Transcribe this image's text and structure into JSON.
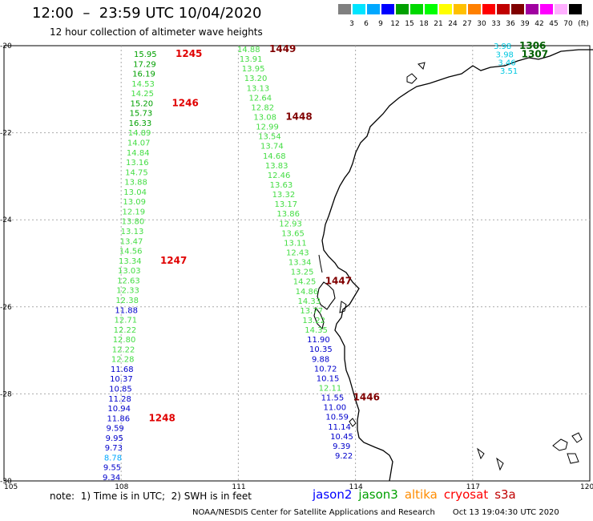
{
  "header": {
    "title": "12:00  –  23:59 UTC 10/04/2020",
    "subtitle": "12 hour collection of altimeter wave heights"
  },
  "scale": {
    "unit": "(ft)",
    "bins": [
      {
        "label": "3",
        "color": "#808080"
      },
      {
        "label": "6",
        "color": "#00e5ff"
      },
      {
        "label": "9",
        "color": "#00a8ff"
      },
      {
        "label": "12",
        "color": "#0000ff"
      },
      {
        "label": "15",
        "color": "#00a000"
      },
      {
        "label": "18",
        "color": "#00d800"
      },
      {
        "label": "21",
        "color": "#00ff00"
      },
      {
        "label": "24",
        "color": "#ffff00"
      },
      {
        "label": "27",
        "color": "#ffc000"
      },
      {
        "label": "30",
        "color": "#ff8000"
      },
      {
        "label": "33",
        "color": "#ff0000"
      },
      {
        "label": "36",
        "color": "#c00000"
      },
      {
        "label": "39",
        "color": "#800000"
      },
      {
        "label": "42",
        "color": "#a000a0"
      },
      {
        "label": "45",
        "color": "#ff00ff"
      },
      {
        "label": "70",
        "color": "#ffb0ff"
      },
      {
        "label": "",
        "color": "#000000"
      }
    ]
  },
  "map": {
    "lat_labels": [
      "-20",
      "-22",
      "-24",
      "-26",
      "-28",
      "-30"
    ],
    "lon_labels": [
      "105",
      "108",
      "111",
      "114",
      "117",
      "120"
    ],
    "tracks": [
      {
        "id": "1245-1248",
        "labels": [
          {
            "text": "1245",
            "color": "#e00000"
          },
          {
            "text": "1246",
            "color": "#e00000"
          },
          {
            "text": "1247",
            "color": "#e00000"
          },
          {
            "text": "1248",
            "color": "#e00000"
          }
        ],
        "values": [
          {
            "v": "15.95",
            "c": "#00a000"
          },
          {
            "v": "17.29",
            "c": "#00a000"
          },
          {
            "v": "16.19",
            "c": "#00a000"
          },
          {
            "v": "14.53",
            "c": "#44dd44"
          },
          {
            "v": "14.25",
            "c": "#44dd44"
          },
          {
            "v": "15.20",
            "c": "#00a000"
          },
          {
            "v": "15.73",
            "c": "#00a000"
          },
          {
            "v": "16.33",
            "c": "#00a000"
          },
          {
            "v": "14.89",
            "c": "#44dd44"
          },
          {
            "v": "14.07",
            "c": "#44dd44"
          },
          {
            "v": "14.84",
            "c": "#44dd44"
          },
          {
            "v": "13.16",
            "c": "#44dd44"
          },
          {
            "v": "14.75",
            "c": "#44dd44"
          },
          {
            "v": "13.88",
            "c": "#44dd44"
          },
          {
            "v": "13.04",
            "c": "#44dd44"
          },
          {
            "v": "13.09",
            "c": "#44dd44"
          },
          {
            "v": "12.19",
            "c": "#44dd44"
          },
          {
            "v": "13.80",
            "c": "#44dd44"
          },
          {
            "v": "13.13",
            "c": "#44dd44"
          },
          {
            "v": "13.47",
            "c": "#44dd44"
          },
          {
            "v": "14.56",
            "c": "#44dd44"
          },
          {
            "v": "13.34",
            "c": "#44dd44"
          },
          {
            "v": "13.03",
            "c": "#44dd44"
          },
          {
            "v": "12.63",
            "c": "#44dd44"
          },
          {
            "v": "12.33",
            "c": "#44dd44"
          },
          {
            "v": "12.38",
            "c": "#44dd44"
          },
          {
            "v": "11.88",
            "c": "#0000cc"
          },
          {
            "v": "12.71",
            "c": "#44dd44"
          },
          {
            "v": "12.22",
            "c": "#44dd44"
          },
          {
            "v": "12.80",
            "c": "#44dd44"
          },
          {
            "v": "12.22",
            "c": "#44dd44"
          },
          {
            "v": "12.28",
            "c": "#44dd44"
          },
          {
            "v": "11.68",
            "c": "#0000cc"
          },
          {
            "v": "10.37",
            "c": "#0000cc"
          },
          {
            "v": "10.85",
            "c": "#0000cc"
          },
          {
            "v": "11.28",
            "c": "#0000cc"
          },
          {
            "v": "10.94",
            "c": "#0000cc"
          },
          {
            "v": "11.86",
            "c": "#0000cc"
          },
          {
            "v": "9.59",
            "c": "#0000cc"
          },
          {
            "v": "9.95",
            "c": "#0000cc"
          },
          {
            "v": "9.73",
            "c": "#0000cc"
          },
          {
            "v": "8.78",
            "c": "#00a8ff"
          },
          {
            "v": "9.55",
            "c": "#0000cc"
          },
          {
            "v": "9.34",
            "c": "#0000cc"
          }
        ]
      },
      {
        "id": "1446-1449",
        "labels": [
          {
            "text": "1449",
            "color": "#800000"
          },
          {
            "text": "1448",
            "color": "#800000"
          },
          {
            "text": "1447",
            "color": "#800000"
          },
          {
            "text": "1446",
            "color": "#800000"
          }
        ],
        "values": [
          {
            "v": "14.88",
            "c": "#44dd44"
          },
          {
            "v": "13.91",
            "c": "#44dd44"
          },
          {
            "v": "13.95",
            "c": "#44dd44"
          },
          {
            "v": "13.20",
            "c": "#44dd44"
          },
          {
            "v": "13.13",
            "c": "#44dd44"
          },
          {
            "v": "12.64",
            "c": "#44dd44"
          },
          {
            "v": "12.82",
            "c": "#44dd44"
          },
          {
            "v": "13.08",
            "c": "#44dd44"
          },
          {
            "v": "12.99",
            "c": "#44dd44"
          },
          {
            "v": "13.54",
            "c": "#44dd44"
          },
          {
            "v": "13.74",
            "c": "#44dd44"
          },
          {
            "v": "14.68",
            "c": "#44dd44"
          },
          {
            "v": "13.83",
            "c": "#44dd44"
          },
          {
            "v": "12.46",
            "c": "#44dd44"
          },
          {
            "v": "13.63",
            "c": "#44dd44"
          },
          {
            "v": "13.32",
            "c": "#44dd44"
          },
          {
            "v": "13.17",
            "c": "#44dd44"
          },
          {
            "v": "13.86",
            "c": "#44dd44"
          },
          {
            "v": "12.93",
            "c": "#44dd44"
          },
          {
            "v": "13.65",
            "c": "#44dd44"
          },
          {
            "v": "13.11",
            "c": "#44dd44"
          },
          {
            "v": "12.43",
            "c": "#44dd44"
          },
          {
            "v": "13.34",
            "c": "#44dd44"
          },
          {
            "v": "13.25",
            "c": "#44dd44"
          },
          {
            "v": "14.25",
            "c": "#44dd44"
          },
          {
            "v": "14.86",
            "c": "#44dd44"
          },
          {
            "v": "14.33",
            "c": "#44dd44"
          },
          {
            "v": "13.77",
            "c": "#44dd44"
          },
          {
            "v": "13.22",
            "c": "#44dd44"
          },
          {
            "v": "14.35",
            "c": "#44dd44"
          },
          {
            "v": "11.90",
            "c": "#0000cc"
          },
          {
            "v": "10.35",
            "c": "#0000cc"
          },
          {
            "v": "9.88",
            "c": "#0000cc"
          },
          {
            "v": "10.72",
            "c": "#0000cc"
          },
          {
            "v": "10.15",
            "c": "#0000cc"
          },
          {
            "v": "12.11",
            "c": "#44dd44"
          },
          {
            "v": "11.55",
            "c": "#0000cc"
          },
          {
            "v": "11.00",
            "c": "#0000cc"
          },
          {
            "v": "10.59",
            "c": "#0000cc"
          },
          {
            "v": "11.14",
            "c": "#0000cc"
          },
          {
            "v": "10.45",
            "c": "#0000cc"
          },
          {
            "v": "9.39",
            "c": "#0000cc"
          },
          {
            "v": "9.22",
            "c": "#0000cc"
          }
        ]
      },
      {
        "id": "1306-1307",
        "labels": [
          {
            "text": "1306",
            "color": "#006000"
          },
          {
            "text": "1307",
            "color": "#006000"
          }
        ],
        "values": [
          {
            "v": "3.98",
            "c": "#00c8e0"
          },
          {
            "v": "3.98",
            "c": "#00c8e0"
          },
          {
            "v": "3.46",
            "c": "#00c8e0"
          },
          {
            "v": "3.51",
            "c": "#00c8e0"
          }
        ]
      }
    ]
  },
  "note": "note:  1) Time is in UTC;  2) SWH is in feet",
  "satellites": [
    {
      "name": "jason2",
      "color": "#0000ff"
    },
    {
      "name": "jason3",
      "color": "#00a000"
    },
    {
      "name": "altika",
      "color": "#ff8c00"
    },
    {
      "name": "cryosat",
      "color": "#ff0000"
    },
    {
      "name": "s3a",
      "color": "#c00000"
    }
  ],
  "footer": {
    "credit": "NOAA/NESDIS Center for Satellite Applications and Research",
    "timestamp": "Oct 13 19:04:30 UTC 2020"
  }
}
